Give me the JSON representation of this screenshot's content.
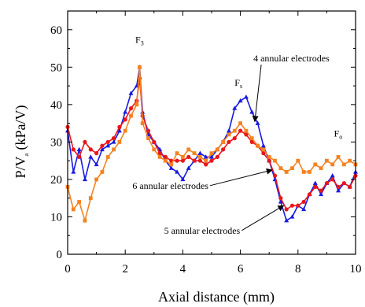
{
  "chart_data": {
    "type": "line",
    "xlabel": "Axial distance (mm)",
    "ylabel_main": "P/V",
    "ylabel_sub": "a",
    "ylabel_unit": " (kPa/V)",
    "xlim": [
      0,
      10
    ],
    "ylim": [
      0,
      65
    ],
    "xticks": [
      0,
      2,
      4,
      6,
      8,
      10
    ],
    "yticks": [
      0,
      10,
      20,
      30,
      40,
      50,
      60
    ],
    "grid": false,
    "annotations": [
      {
        "id": "f3",
        "main": "F",
        "sub": "3",
        "x": 2.35,
        "y": 56.5
      },
      {
        "id": "fs",
        "main": "F",
        "sub": "s",
        "x": 5.8,
        "y": 45
      },
      {
        "id": "fo",
        "main": "F",
        "sub": "o",
        "x": 9.25,
        "y": 31.5
      }
    ],
    "series_labels": [
      {
        "text": "4 annular electrodes",
        "x": 6.45,
        "y": 51.5,
        "arrow_to": [
          6.5,
          35.5
        ]
      },
      {
        "text": "6 annular electrodes",
        "x": 2.25,
        "y": 17.5,
        "arrow_to": [
          7.1,
          22.5
        ]
      },
      {
        "text": "5 annular electrodes",
        "x": 3.35,
        "y": 5.5,
        "arrow_to": [
          7.5,
          13
        ]
      }
    ],
    "series": [
      {
        "color": "#1a1adf",
        "marker": "triangle",
        "x": [
          0,
          0.2,
          0.4,
          0.6,
          0.8,
          1.0,
          1.2,
          1.4,
          1.6,
          1.8,
          2.0,
          2.2,
          2.4,
          2.5,
          2.6,
          2.8,
          3.0,
          3.2,
          3.4,
          3.6,
          3.8,
          4.0,
          4.2,
          4.4,
          4.6,
          4.8,
          5.0,
          5.2,
          5.4,
          5.6,
          5.8,
          6.0,
          6.2,
          6.4,
          6.6,
          6.8,
          7.0,
          7.2,
          7.4,
          7.6,
          7.8,
          8.0,
          8.2,
          8.4,
          8.6,
          8.8,
          9.0,
          9.2,
          9.4,
          9.6,
          9.8,
          10.0
        ],
        "y": [
          33,
          22,
          28,
          20,
          26,
          24,
          28,
          29,
          30,
          33,
          38,
          43,
          45,
          50,
          38,
          32,
          30,
          28,
          25,
          23,
          22,
          20,
          23,
          25,
          27,
          26,
          26,
          28,
          30,
          33,
          39,
          41,
          42,
          38,
          35,
          29,
          25,
          20,
          14,
          9,
          10,
          13,
          12,
          16,
          19,
          16,
          19,
          21,
          17,
          19,
          18,
          22
        ]
      },
      {
        "color": "#e8161b",
        "marker": "circle",
        "x": [
          0,
          0.2,
          0.4,
          0.6,
          0.8,
          1.0,
          1.2,
          1.4,
          1.6,
          1.8,
          2.0,
          2.2,
          2.4,
          2.5,
          2.6,
          2.8,
          3.0,
          3.2,
          3.4,
          3.6,
          3.8,
          4.0,
          4.2,
          4.4,
          4.6,
          4.8,
          5.0,
          5.2,
          5.4,
          5.6,
          5.8,
          6.0,
          6.2,
          6.4,
          6.6,
          6.8,
          7.0,
          7.2,
          7.4,
          7.6,
          7.8,
          8.0,
          8.2,
          8.4,
          8.6,
          8.8,
          9.0,
          9.2,
          9.4,
          9.6,
          9.8,
          10.0
        ],
        "y": [
          34,
          28,
          26,
          30,
          28,
          27,
          29,
          30,
          31,
          34,
          36,
          39,
          41,
          47,
          37,
          33,
          30,
          27,
          26,
          25,
          25,
          25,
          26,
          25,
          25,
          24,
          25,
          26,
          28,
          30,
          31,
          33,
          32,
          30,
          29,
          27,
          25,
          21,
          15,
          12,
          13,
          13,
          14,
          16,
          18,
          17,
          19,
          20,
          18,
          19,
          18,
          21
        ]
      },
      {
        "color": "#f58220",
        "marker": "square",
        "x": [
          0,
          0.2,
          0.4,
          0.6,
          0.8,
          1.0,
          1.2,
          1.4,
          1.6,
          1.8,
          2.0,
          2.2,
          2.4,
          2.5,
          2.6,
          2.8,
          3.0,
          3.2,
          3.4,
          3.6,
          3.8,
          4.0,
          4.2,
          4.4,
          4.6,
          4.8,
          5.0,
          5.2,
          5.4,
          5.6,
          5.8,
          6.0,
          6.2,
          6.4,
          6.6,
          6.8,
          7.0,
          7.2,
          7.4,
          7.6,
          7.8,
          8.0,
          8.2,
          8.4,
          8.6,
          8.8,
          9.0,
          9.2,
          9.4,
          9.6,
          9.8,
          10.0
        ],
        "y": [
          18,
          12,
          14,
          9,
          15,
          20,
          22,
          26,
          28,
          30,
          33,
          37,
          40,
          50,
          35,
          31,
          28,
          26,
          25,
          24,
          27,
          26,
          28,
          27,
          26,
          25,
          27,
          28,
          30,
          32,
          33,
          35,
          33,
          31,
          29,
          28,
          26,
          25,
          23,
          22,
          23,
          25,
          22,
          22,
          24,
          23,
          25,
          24,
          26,
          24,
          25,
          24
        ]
      }
    ]
  }
}
